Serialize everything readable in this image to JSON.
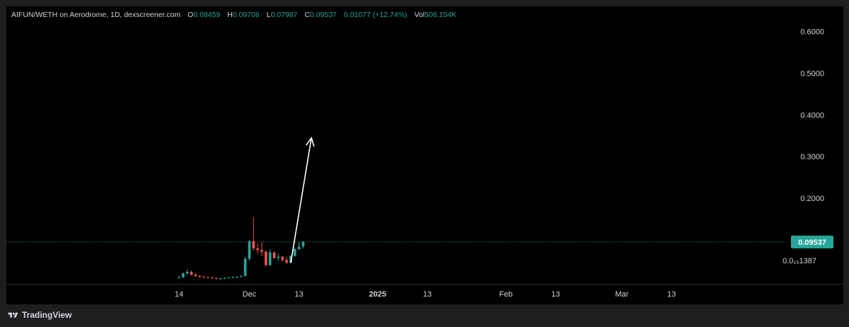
{
  "legend": {
    "symbol": "AIFUN/WETH on Aerodrome, 1D, dexscreener.com",
    "o_label": "O",
    "o_value": "0.08459",
    "h_label": "H",
    "h_value": "0.09706",
    "l_label": "L",
    "l_value": "0.07987",
    "c_label": "C",
    "c_value": "0.09537",
    "change": "0.01077 (+12.74%)",
    "vol_label": "Vol",
    "vol_value": "506.154K"
  },
  "footer": {
    "brand": "TradingView",
    "logo_icon": "tradingview-logo-icon"
  },
  "colors": {
    "up": "#26a69a",
    "down": "#ef5350",
    "current_price_bg": "#26a69a",
    "arrow": "#ffffff"
  },
  "chart_data": {
    "type": "candlestick",
    "title": "",
    "ylim": [
      -0.005,
      0.66
    ],
    "y_ticks": [
      "0.6000",
      "0.5000",
      "0.4000",
      "0.3000",
      "0.2000"
    ],
    "bottom_tick_label": "0.0₁₅1387",
    "current_price": 0.09537,
    "current_price_label": "0.09537",
    "x_ticks": [
      "14",
      "Dec",
      "13",
      "2025",
      "13",
      "Feb",
      "13",
      "Mar",
      "13"
    ],
    "x_ticks_days": [
      0,
      17,
      29,
      48,
      60,
      79,
      91,
      107,
      119
    ],
    "candles": [
      {
        "day": 0,
        "o": 0.01,
        "h": 0.014,
        "l": 0.007,
        "c": 0.011
      },
      {
        "day": 1,
        "o": 0.011,
        "h": 0.022,
        "l": 0.008,
        "c": 0.02
      },
      {
        "day": 2,
        "o": 0.02,
        "h": 0.03,
        "l": 0.016,
        "c": 0.024
      },
      {
        "day": 3,
        "o": 0.024,
        "h": 0.026,
        "l": 0.015,
        "c": 0.017
      },
      {
        "day": 4,
        "o": 0.017,
        "h": 0.021,
        "l": 0.012,
        "c": 0.014
      },
      {
        "day": 5,
        "o": 0.014,
        "h": 0.016,
        "l": 0.01,
        "c": 0.012
      },
      {
        "day": 6,
        "o": 0.012,
        "h": 0.014,
        "l": 0.009,
        "c": 0.011
      },
      {
        "day": 7,
        "o": 0.011,
        "h": 0.012,
        "l": 0.008,
        "c": 0.01
      },
      {
        "day": 8,
        "o": 0.01,
        "h": 0.012,
        "l": 0.007,
        "c": 0.009
      },
      {
        "day": 9,
        "o": 0.009,
        "h": 0.01,
        "l": 0.006,
        "c": 0.007
      },
      {
        "day": 10,
        "o": 0.007,
        "h": 0.009,
        "l": 0.005,
        "c": 0.008
      },
      {
        "day": 11,
        "o": 0.008,
        "h": 0.01,
        "l": 0.006,
        "c": 0.009
      },
      {
        "day": 12,
        "o": 0.009,
        "h": 0.011,
        "l": 0.007,
        "c": 0.01
      },
      {
        "day": 13,
        "o": 0.01,
        "h": 0.013,
        "l": 0.008,
        "c": 0.011
      },
      {
        "day": 14,
        "o": 0.011,
        "h": 0.013,
        "l": 0.009,
        "c": 0.012
      },
      {
        "day": 15,
        "o": 0.012,
        "h": 0.015,
        "l": 0.01,
        "c": 0.014
      },
      {
        "day": 16,
        "o": 0.014,
        "h": 0.06,
        "l": 0.012,
        "c": 0.055
      },
      {
        "day": 17,
        "o": 0.055,
        "h": 0.1,
        "l": 0.05,
        "c": 0.097
      },
      {
        "day": 18,
        "o": 0.097,
        "h": 0.155,
        "l": 0.075,
        "c": 0.08
      },
      {
        "day": 19,
        "o": 0.08,
        "h": 0.092,
        "l": 0.068,
        "c": 0.076
      },
      {
        "day": 20,
        "o": 0.076,
        "h": 0.095,
        "l": 0.062,
        "c": 0.072
      },
      {
        "day": 21,
        "o": 0.072,
        "h": 0.074,
        "l": 0.036,
        "c": 0.04
      },
      {
        "day": 22,
        "o": 0.04,
        "h": 0.078,
        "l": 0.038,
        "c": 0.07
      },
      {
        "day": 23,
        "o": 0.07,
        "h": 0.072,
        "l": 0.055,
        "c": 0.057
      },
      {
        "day": 24,
        "o": 0.057,
        "h": 0.068,
        "l": 0.05,
        "c": 0.06
      },
      {
        "day": 25,
        "o": 0.06,
        "h": 0.062,
        "l": 0.048,
        "c": 0.052
      },
      {
        "day": 26,
        "o": 0.052,
        "h": 0.06,
        "l": 0.042,
        "c": 0.046
      },
      {
        "day": 27,
        "o": 0.046,
        "h": 0.064,
        "l": 0.044,
        "c": 0.062
      },
      {
        "day": 28,
        "o": 0.062,
        "h": 0.082,
        "l": 0.06,
        "c": 0.078
      },
      {
        "day": 29,
        "o": 0.078,
        "h": 0.095,
        "l": 0.076,
        "c": 0.084
      },
      {
        "day": 30,
        "o": 0.08459,
        "h": 0.09706,
        "l": 0.07987,
        "c": 0.09537
      }
    ],
    "annotation_arrow": {
      "from": {
        "day": 27,
        "y": 0.045
      },
      "to": {
        "day": 32,
        "y": 0.345
      }
    }
  }
}
